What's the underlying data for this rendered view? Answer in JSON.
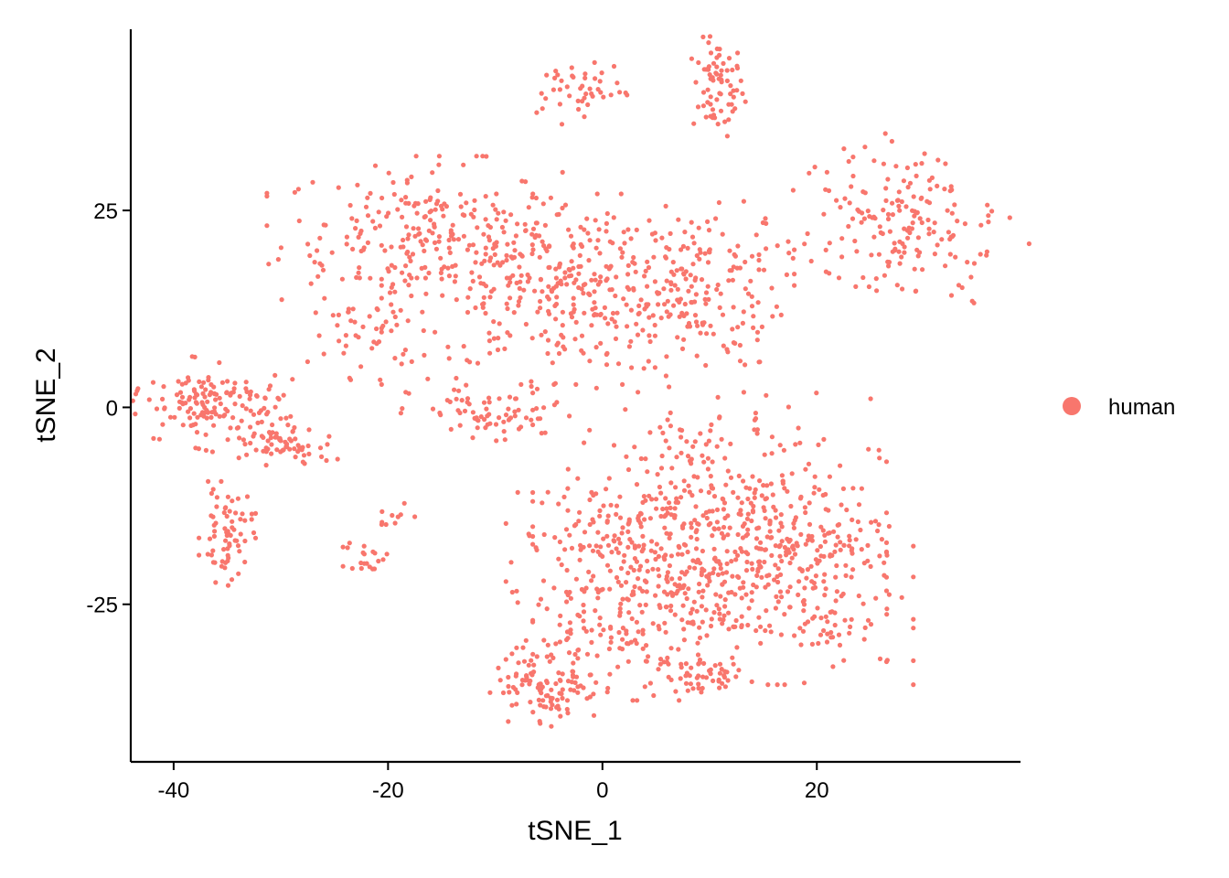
{
  "chart_data": {
    "type": "scatter",
    "title": "",
    "xlabel": "tSNE_1",
    "ylabel": "tSNE_2",
    "xlim": [
      -44,
      39
    ],
    "ylim": [
      -45,
      48
    ],
    "x_ticks": [
      -40,
      -20,
      0,
      20
    ],
    "x_tick_labels": [
      "-40",
      "-20",
      "0",
      "20"
    ],
    "y_ticks": [
      -25,
      0,
      25
    ],
    "y_tick_labels": [
      "-25",
      "0",
      "25"
    ],
    "grid": false,
    "legend_position": "right",
    "series": [
      {
        "name": "human",
        "color": "#F8766D",
        "clusters": [
          {
            "cx": -2,
            "cy": 40,
            "sx": 1.8,
            "sy": 2.2,
            "n": 45,
            "rot": -0.9
          },
          {
            "cx": 10.8,
            "cy": 40.5,
            "sx": 1.2,
            "sy": 3.0,
            "n": 70,
            "rot": 0
          },
          {
            "cx": -17,
            "cy": 22,
            "sx": 6.5,
            "sy": 4.5,
            "n": 230,
            "rot": 0
          },
          {
            "cx": -3,
            "cy": 15,
            "sx": 8.0,
            "sy": 5.5,
            "n": 340,
            "rot": 0
          },
          {
            "cx": 8,
            "cy": 15,
            "sx": 4.5,
            "sy": 5.0,
            "n": 150,
            "rot": 0
          },
          {
            "cx": -10,
            "cy": -1,
            "sx": 4.0,
            "sy": 2.0,
            "n": 75,
            "rot": 0
          },
          {
            "cx": -22,
            "cy": 9,
            "sx": 2.5,
            "sy": 2.5,
            "n": 40,
            "rot": 0
          },
          {
            "cx": 28,
            "cy": 23,
            "sx": 5.0,
            "sy": 4.0,
            "n": 180,
            "rot": -0.6
          },
          {
            "cx": -36,
            "cy": 0,
            "sx": 3.5,
            "sy": 2.5,
            "n": 160,
            "rot": -0.3
          },
          {
            "cx": -30,
            "cy": -5,
            "sx": 2.5,
            "sy": 1.2,
            "n": 55,
            "rot": -0.2
          },
          {
            "cx": -35,
            "cy": -16,
            "sx": 1.2,
            "sy": 3.0,
            "n": 70,
            "rot": 0
          },
          {
            "cx": -22,
            "cy": -19,
            "sx": 1.0,
            "sy": 1.0,
            "n": 20,
            "rot": 0
          },
          {
            "cx": -20,
            "cy": -14,
            "sx": 1.2,
            "sy": 0.6,
            "n": 10,
            "rot": 0.5
          },
          {
            "cx": 10,
            "cy": -15,
            "sx": 7.5,
            "sy": 8.0,
            "n": 500,
            "rot": 0
          },
          {
            "cx": 2,
            "cy": -24,
            "sx": 5.0,
            "sy": 6.0,
            "n": 230,
            "rot": 0
          },
          {
            "cx": 18,
            "cy": -22,
            "sx": 5.0,
            "sy": 6.0,
            "n": 190,
            "rot": 0
          },
          {
            "cx": -5,
            "cy": -35,
            "sx": 2.5,
            "sy": 2.5,
            "n": 110,
            "rot": 0
          },
          {
            "cx": 10,
            "cy": -34,
            "sx": 2.0,
            "sy": 1.2,
            "n": 45,
            "rot": 0
          }
        ]
      }
    ]
  }
}
